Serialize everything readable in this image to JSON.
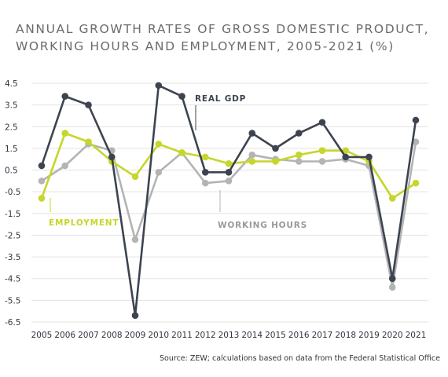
{
  "title": {
    "line1": "ANNUAL GROWTH RATES OF GROSS DOMESTIC PRODUCT,",
    "line2": "WORKING HOURS AND EMPLOYMENT, 2005-2021 (%)"
  },
  "source": "Source: ZEW; calculations based on data from the Federal Statistical Office",
  "colors": {
    "gdp": "#3d4450",
    "hours": "#b4b4b4",
    "employment": "#c6d62a",
    "grid": "#e3e3e3",
    "hours_label": "#9a9a9a"
  },
  "chart_data": {
    "type": "line",
    "x": [
      "2005",
      "2006",
      "2007",
      "2008",
      "2009",
      "2010",
      "2011",
      "2012",
      "2013",
      "2014",
      "2015",
      "2016",
      "2017",
      "2018",
      "2019",
      "2020",
      "2021"
    ],
    "y_ticks": [
      "4.5",
      "3.5",
      "2.5",
      "1.5",
      "0.5",
      "-0.5",
      "-1.5",
      "-2.5",
      "-3.5",
      "-4.5",
      "-5.5",
      "-6.5"
    ],
    "ylim": [
      -6.5,
      4.5
    ],
    "grid": true,
    "series": [
      {
        "name": "REAL GDP",
        "key": "gdp",
        "values": [
          0.7,
          3.9,
          3.5,
          1.1,
          -6.2,
          4.4,
          3.9,
          0.4,
          0.4,
          2.2,
          1.5,
          2.2,
          2.7,
          1.1,
          1.1,
          -4.5,
          2.8
        ]
      },
      {
        "name": "WORKING HOURS",
        "key": "hours",
        "values": [
          0.0,
          0.7,
          1.7,
          1.4,
          -2.7,
          0.4,
          1.3,
          -0.1,
          0.0,
          1.2,
          1.0,
          0.9,
          0.9,
          1.0,
          0.7,
          -4.9,
          1.8
        ]
      },
      {
        "name": "EMPLOYMENT",
        "key": "employment",
        "values": [
          -0.8,
          2.2,
          1.8,
          0.9,
          0.2,
          1.7,
          1.3,
          1.1,
          0.8,
          0.9,
          0.9,
          1.2,
          1.4,
          1.4,
          0.9,
          -0.8,
          -0.1
        ]
      }
    ]
  }
}
